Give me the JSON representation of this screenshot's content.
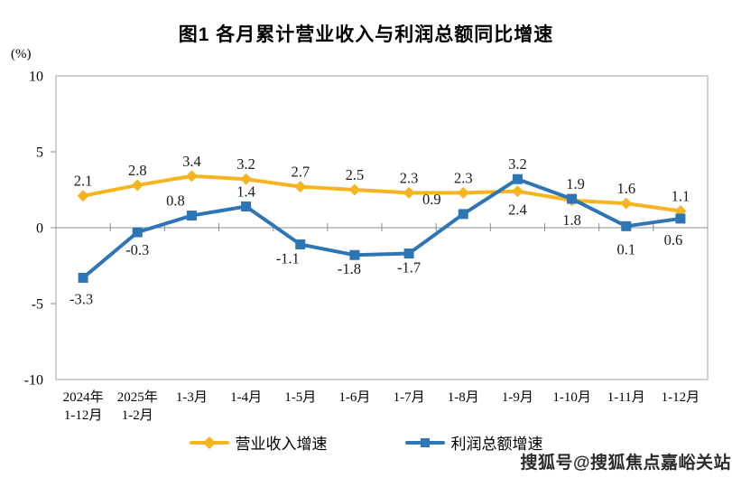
{
  "title": "图1  各月累计营业收入与利润总额同比增速",
  "unit_label": "(%)",
  "watermark": "搜狐号@搜狐焦点嘉峪关站",
  "colors": {
    "revenue_series": "#F6B41F",
    "profit_series": "#2E75B6",
    "axis_line": "#8C8C8C",
    "frame_border": "#C0C0C0",
    "label_text": "#1A1A1A"
  },
  "legend": [
    {
      "label": "营业收入增速",
      "color": "#F6B41F",
      "marker": "diamond"
    },
    {
      "label": "利润总额增速",
      "color": "#2E75B6",
      "marker": "square"
    }
  ],
  "chart_data": {
    "type": "line",
    "title": "图1  各月累计营业收入与利润总额同比增速",
    "ylabel": "(%)",
    "xlabel": "",
    "ylim": [
      -10,
      10
    ],
    "yticks": [
      10,
      5,
      0,
      -5,
      -10
    ],
    "grid": "zero-axis-only",
    "legend_position": "bottom",
    "categories": [
      [
        "2024年",
        "1-12月"
      ],
      [
        "2025年",
        "1-2月"
      ],
      [
        "1-3月"
      ],
      [
        "1-4月"
      ],
      [
        "1-5月"
      ],
      [
        "1-6月"
      ],
      [
        "1-7月"
      ],
      [
        "1-8月"
      ],
      [
        "1-9月"
      ],
      [
        "1-10月"
      ],
      [
        "1-11月"
      ],
      [
        "1-12月"
      ]
    ],
    "series": [
      {
        "name": "营业收入增速",
        "color": "#F6B41F",
        "marker": "diamond",
        "values": [
          2.1,
          2.8,
          3.4,
          3.2,
          2.7,
          2.5,
          2.3,
          2.3,
          2.4,
          1.8,
          1.6,
          1.1
        ]
      },
      {
        "name": "利润总额增速",
        "color": "#2E75B6",
        "marker": "square",
        "values": [
          -3.3,
          -0.3,
          0.8,
          1.4,
          -1.1,
          -1.8,
          -1.7,
          0.9,
          3.2,
          1.9,
          0.1,
          0.6
        ]
      }
    ]
  }
}
